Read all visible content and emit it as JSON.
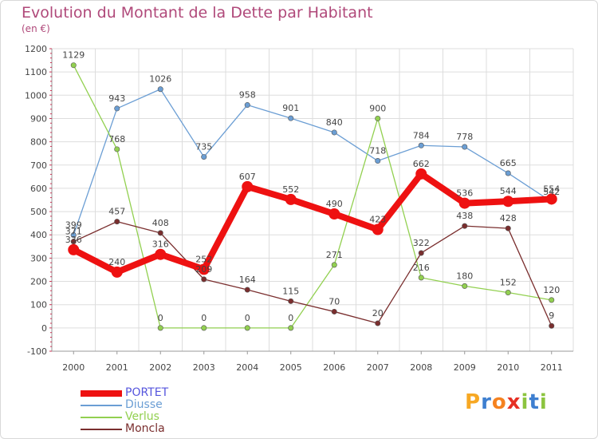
{
  "header": {
    "title": "Evolution du Montant de la Dette par Habitant",
    "subtitle": "(en €)"
  },
  "logo": {
    "text": "Proxiti",
    "letters": [
      {
        "ch": "P",
        "color": "#f7a823"
      },
      {
        "ch": "r",
        "color": "#3e7fd0"
      },
      {
        "ch": "o",
        "color": "#f58220"
      },
      {
        "ch": "x",
        "color": "#e63024"
      },
      {
        "ch": "i",
        "color": "#8cc43f"
      },
      {
        "ch": "t",
        "color": "#3e7fd0"
      },
      {
        "ch": "i",
        "color": "#8cc43f"
      }
    ]
  },
  "chart_data": {
    "type": "line",
    "title": "Evolution du Montant de la Dette par Habitant",
    "subtitle": "(en €)",
    "xlabel": "",
    "ylabel": "",
    "ylim": [
      -100,
      1200
    ],
    "y_ticks": [
      "-100",
      "0",
      "100",
      "200",
      "300",
      "400",
      "500",
      "600",
      "700",
      "800",
      "900",
      "1000",
      "1100",
      "1200"
    ],
    "grid": true,
    "legend_position": "bottom-left",
    "categories": [
      "2000",
      "2001",
      "2002",
      "2003",
      "2004",
      "2005",
      "2006",
      "2007",
      "2008",
      "2009",
      "2010",
      "2011"
    ],
    "series": [
      {
        "name": "PORTET",
        "color": "#ee1111",
        "legend_color": "#5555dd",
        "values": [
          336,
          240,
          316,
          252,
          607,
          552,
          490,
          423,
          662,
          536,
          544,
          554
        ],
        "labels": [
          "336",
          "240",
          "316",
          "252",
          "607",
          "552",
          "490",
          "423",
          "662",
          "536",
          "544",
          "554"
        ]
      },
      {
        "name": "Diusse",
        "color": "#6b9ed4",
        "legend_color": "#6b9ed4",
        "values": [
          399,
          943,
          1026,
          735,
          958,
          901,
          840,
          718,
          784,
          778,
          665,
          542
        ],
        "labels": [
          "399",
          "943",
          "1026",
          "735",
          "958",
          "901",
          "840",
          "718",
          "784",
          "778",
          "665",
          "542"
        ]
      },
      {
        "name": "Verlus",
        "color": "#92d050",
        "legend_color": "#92d050",
        "values": [
          1129,
          768,
          0,
          0,
          0,
          0,
          271,
          900,
          216,
          180,
          152,
          120
        ],
        "labels": [
          "1129",
          "768",
          "0",
          "0",
          "0",
          "0",
          "271",
          "900",
          "216",
          "180",
          "152",
          "120"
        ]
      },
      {
        "name": "Moncla",
        "color": "#7a2e2e",
        "legend_color": "#7a2e2e",
        "values": [
          371,
          457,
          408,
          209,
          164,
          115,
          70,
          20,
          322,
          438,
          428,
          9
        ],
        "labels": [
          "371",
          "457",
          "408",
          "209",
          "164",
          "115",
          "70",
          "20",
          "322",
          "438",
          "428",
          "9"
        ]
      }
    ]
  }
}
